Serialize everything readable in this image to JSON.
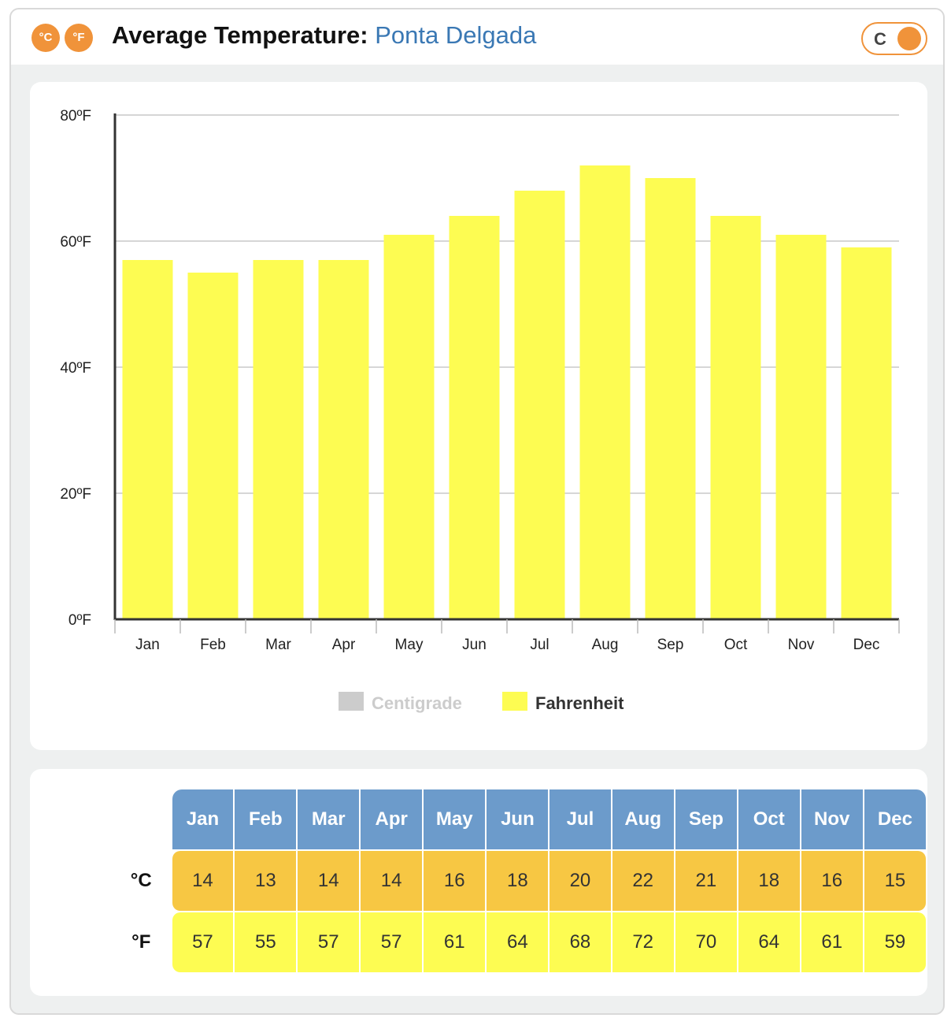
{
  "header": {
    "title_label": "Average Temperature:",
    "city": "Ponta Delgada",
    "icon_celsius": "°C",
    "icon_fahrenheit": "°F",
    "toggle_label": "C",
    "accent": "#f0933a"
  },
  "chart_data": {
    "type": "bar",
    "categories": [
      "Jan",
      "Feb",
      "Mar",
      "Apr",
      "May",
      "Jun",
      "Jul",
      "Aug",
      "Sep",
      "Oct",
      "Nov",
      "Dec"
    ],
    "series": [
      {
        "name": "Centigrade",
        "values": [
          14,
          13,
          14,
          14,
          16,
          18,
          20,
          22,
          21,
          18,
          16,
          15
        ],
        "color": "#cccccc",
        "visible": false
      },
      {
        "name": "Fahrenheit",
        "values": [
          57,
          55,
          57,
          57,
          61,
          64,
          68,
          72,
          70,
          64,
          61,
          59
        ],
        "color": "#fdfc52",
        "visible": true
      }
    ],
    "ylim": [
      0,
      80
    ],
    "yticks": [
      "0ºF",
      "20ºF",
      "40ºF",
      "60ºF",
      "80ºF"
    ],
    "ytick_values": [
      0,
      20,
      40,
      60,
      80
    ],
    "grid": true,
    "legend_position": "bottom"
  },
  "table": {
    "months": [
      "Jan",
      "Feb",
      "Mar",
      "Apr",
      "May",
      "Jun",
      "Jul",
      "Aug",
      "Sep",
      "Oct",
      "Nov",
      "Dec"
    ],
    "celsius_label": "°C",
    "fahrenheit_label": "°F",
    "celsius": [
      "14",
      "13",
      "14",
      "14",
      "16",
      "18",
      "20",
      "22",
      "21",
      "18",
      "16",
      "15"
    ],
    "fahrenheit": [
      "57",
      "55",
      "57",
      "57",
      "61",
      "64",
      "68",
      "72",
      "70",
      "64",
      "61",
      "59"
    ]
  }
}
